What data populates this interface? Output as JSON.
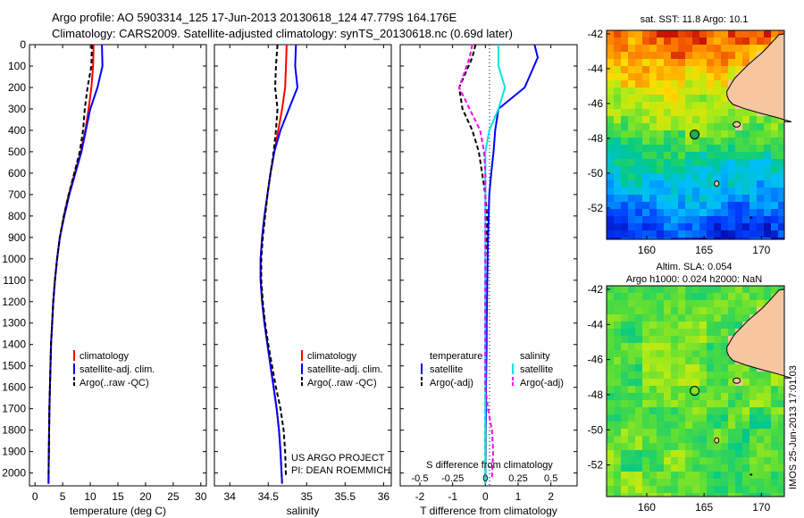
{
  "titles": {
    "line1": "Argo profile: AO 5903314_125 17-Jun-2013 20130618_124 47.779S 164.176E",
    "line2": "Climatology: CARS2009. Satellite-adjusted climatology: synTS_20130618.nc (0.69d later)"
  },
  "colors": {
    "climatology": "#ff0000",
    "satellite": "#0000ff",
    "argo": "#000000",
    "satellite_salinity": "#00e5e5",
    "argo_salinity": "#ff00ff",
    "land": "#f5c6a0",
    "argo_marker": "#22aa55"
  },
  "depth_axis": {
    "ticks": [
      0,
      100,
      200,
      300,
      400,
      500,
      600,
      700,
      800,
      900,
      1000,
      1100,
      1200,
      1300,
      1400,
      1500,
      1600,
      1700,
      1800,
      1900,
      2000
    ],
    "range": [
      0,
      2060
    ]
  },
  "chart_data": [
    {
      "type": "line",
      "id": "temperature",
      "xlabel": "temperature (deg C)",
      "xlim": [
        -1,
        31
      ],
      "xticks": [
        0,
        5,
        10,
        15,
        20,
        25,
        30
      ],
      "ylim": [
        0,
        2060
      ],
      "legend": [
        "climatology",
        "satellite-adj. clim.",
        "Argo(..raw -QC)"
      ],
      "series": [
        {
          "name": "climatology",
          "x": [
            10.6,
            10.5,
            10.2,
            9.7,
            9.1,
            8.3,
            7.2,
            6.1,
            5.2,
            4.5,
            4.0,
            3.6,
            3.3,
            3.1,
            2.9,
            2.8,
            2.7,
            2.6,
            2.55,
            2.5,
            2.45
          ],
          "y": [
            0,
            100,
            200,
            300,
            400,
            500,
            600,
            700,
            800,
            900,
            1000,
            1100,
            1200,
            1300,
            1400,
            1500,
            1600,
            1700,
            1800,
            1900,
            2050
          ]
        },
        {
          "name": "satellite-adj. clim.",
          "x": [
            12.1,
            12.2,
            11.3,
            10.0,
            9.2,
            8.4,
            7.3,
            6.2,
            5.3,
            4.5,
            4.0,
            3.6,
            3.3,
            3.1,
            2.9,
            2.8,
            2.7,
            2.6,
            2.55,
            2.5,
            2.45
          ],
          "y": [
            0,
            100,
            200,
            300,
            400,
            500,
            600,
            700,
            800,
            900,
            1000,
            1100,
            1200,
            1300,
            1400,
            1500,
            1600,
            1700,
            1800,
            1900,
            2050
          ]
        },
        {
          "name": "Argo(..raw -QC)",
          "x": [
            10.3,
            10.2,
            9.5,
            9.0,
            8.7,
            8.1,
            7.1,
            6.1,
            5.2,
            4.5,
            4.0,
            3.6,
            3.3,
            3.1,
            2.9,
            2.8,
            2.7,
            2.6,
            2.55,
            2.5,
            2.45
          ],
          "y": [
            0,
            100,
            200,
            300,
            400,
            500,
            600,
            700,
            800,
            900,
            1000,
            1100,
            1200,
            1300,
            1400,
            1500,
            1600,
            1700,
            1800,
            1900,
            2020
          ]
        }
      ]
    },
    {
      "type": "line",
      "id": "salinity",
      "xlabel": "salinity",
      "xlim": [
        33.8,
        36.1
      ],
      "xticks": [
        34,
        34.5,
        35,
        35.5,
        36
      ],
      "ylim": [
        0,
        2060
      ],
      "legend": [
        "climatology",
        "satellite-adj. clim.",
        "Argo(..raw -QC)"
      ],
      "annotation": [
        "US ARGO PROJECT",
        "PI: DEAN ROEMMICH"
      ],
      "series": [
        {
          "name": "climatology",
          "x": [
            34.74,
            34.73,
            34.72,
            34.68,
            34.63,
            34.58,
            34.53,
            34.49,
            34.45,
            34.42,
            34.4,
            34.4,
            34.42,
            34.45,
            34.49,
            34.53,
            34.57,
            34.61,
            34.64,
            34.66,
            34.68
          ],
          "y": [
            0,
            100,
            200,
            300,
            400,
            500,
            600,
            700,
            800,
            900,
            1000,
            1100,
            1200,
            1300,
            1400,
            1500,
            1600,
            1700,
            1800,
            1900,
            2050
          ]
        },
        {
          "name": "satellite-adj. clim.",
          "x": [
            34.86,
            34.85,
            34.88,
            34.77,
            34.66,
            34.58,
            34.53,
            34.49,
            34.45,
            34.42,
            34.4,
            34.4,
            34.42,
            34.45,
            34.49,
            34.53,
            34.57,
            34.61,
            34.64,
            34.66,
            34.68
          ],
          "y": [
            0,
            100,
            200,
            300,
            400,
            500,
            600,
            700,
            800,
            900,
            1000,
            1100,
            1200,
            1300,
            1400,
            1500,
            1600,
            1700,
            1800,
            1900,
            2050
          ]
        },
        {
          "name": "Argo(..raw -QC)",
          "x": [
            34.62,
            34.6,
            34.59,
            34.62,
            34.6,
            34.57,
            34.53,
            34.49,
            34.46,
            34.43,
            34.41,
            34.41,
            34.43,
            34.46,
            34.5,
            34.55,
            34.6,
            34.66,
            34.7,
            34.72,
            34.73
          ],
          "y": [
            0,
            100,
            200,
            300,
            400,
            500,
            600,
            700,
            800,
            900,
            1000,
            1100,
            1200,
            1300,
            1400,
            1500,
            1600,
            1700,
            1800,
            1900,
            2020
          ]
        }
      ]
    },
    {
      "type": "line",
      "id": "difference",
      "xlabel": "T difference from climatology",
      "xlabel_top": "S difference from climatology",
      "xlim": [
        -2.6,
        2.8
      ],
      "xticks": [
        -2,
        -1,
        0,
        1,
        2
      ],
      "s_xticks": [
        -0.5,
        -0.25,
        0,
        0.25,
        0.5
      ],
      "s_xtick_labels": [
        "-0.5",
        "-0.25",
        "0",
        "0.25",
        "0.5"
      ],
      "ylim": [
        0,
        2060
      ],
      "legend_temperature_title": "temperature",
      "legend_salinity_title": "salinity",
      "legend": [
        "satellite",
        "Argo(-adj)",
        "satellite",
        "Argo(-adj)"
      ],
      "series": [
        {
          "name": "T satellite",
          "x": [
            1.5,
            1.6,
            1.2,
            0.4,
            0.3,
            0.25,
            0.18,
            0.12,
            0.1,
            0.08,
            0.07,
            0.06,
            0.05,
            0.04,
            0.04,
            0.03,
            0.02,
            0.02,
            0.01,
            0.01,
            0.0
          ],
          "y": [
            0,
            60,
            200,
            300,
            400,
            500,
            600,
            700,
            800,
            900,
            1000,
            1100,
            1200,
            1300,
            1400,
            1500,
            1600,
            1700,
            1800,
            1900,
            2050
          ]
        },
        {
          "name": "T Argo(-adj)",
          "x": [
            -0.3,
            -0.4,
            -0.8,
            -0.7,
            -0.4,
            -0.2,
            -0.1,
            0.0,
            0.05,
            0.04,
            0.0,
            0.0,
            0.0,
            0.0,
            0.0,
            0.0,
            0.0,
            0.0,
            0.0,
            0.0,
            0.0
          ],
          "y": [
            0,
            60,
            200,
            300,
            400,
            500,
            600,
            700,
            800,
            900,
            1000,
            1100,
            1200,
            1300,
            1400,
            1500,
            1600,
            1700,
            1800,
            1900,
            2020
          ]
        },
        {
          "name": "S satellite",
          "x": [
            0.1,
            0.1,
            0.15,
            0.1,
            0.03,
            0.0,
            0.0,
            0.0,
            0.0,
            0.0,
            0.0,
            0.0,
            0.0,
            0.0,
            0.0,
            0.0,
            0.0,
            0.0,
            0.0,
            0.0,
            0.0
          ],
          "y": [
            0,
            100,
            200,
            300,
            400,
            500,
            600,
            700,
            800,
            900,
            1000,
            1100,
            1200,
            1300,
            1400,
            1500,
            1600,
            1700,
            1800,
            1900,
            2050
          ]
        },
        {
          "name": "S Argo(-adj)",
          "x": [
            -0.1,
            -0.12,
            -0.2,
            -0.12,
            -0.04,
            -0.01,
            0.0,
            0.0,
            0.0,
            0.0,
            0.0,
            0.0,
            0.0,
            0.0,
            0.0,
            0.0,
            0.0,
            0.02,
            0.05,
            0.06,
            0.05
          ],
          "y": [
            0,
            60,
            200,
            300,
            400,
            500,
            600,
            700,
            800,
            900,
            1000,
            1100,
            1200,
            1300,
            1400,
            1500,
            1600,
            1700,
            1800,
            1900,
            2020
          ]
        }
      ]
    },
    {
      "type": "heatmap",
      "id": "sst_map",
      "title": "sat. SST: 11.8 Argo: 10.1",
      "xlim": [
        156.5,
        172
      ],
      "ylim": [
        -53.8,
        -41.8
      ],
      "xticks": [
        160,
        165,
        170
      ],
      "yticks": [
        -42,
        -44,
        -46,
        -48,
        -50,
        -52
      ],
      "argo_position": {
        "lon": 164.176,
        "lat": -47.779
      }
    },
    {
      "type": "heatmap",
      "id": "sla_map",
      "title_line1": "Altim. SLA: 0.054",
      "title_line2": "Argo h1000: 0.024 h2000: NaN",
      "xlim": [
        156.5,
        172
      ],
      "ylim": [
        -53.8,
        -41.8
      ],
      "xticks": [
        160,
        165,
        170
      ],
      "yticks": [
        -42,
        -44,
        -46,
        -48,
        -50,
        -52
      ],
      "argo_position": {
        "lon": 164.176,
        "lat": -47.779
      }
    }
  ],
  "side_stamp": "IMOS 25-Jun-2013 17:01:03"
}
